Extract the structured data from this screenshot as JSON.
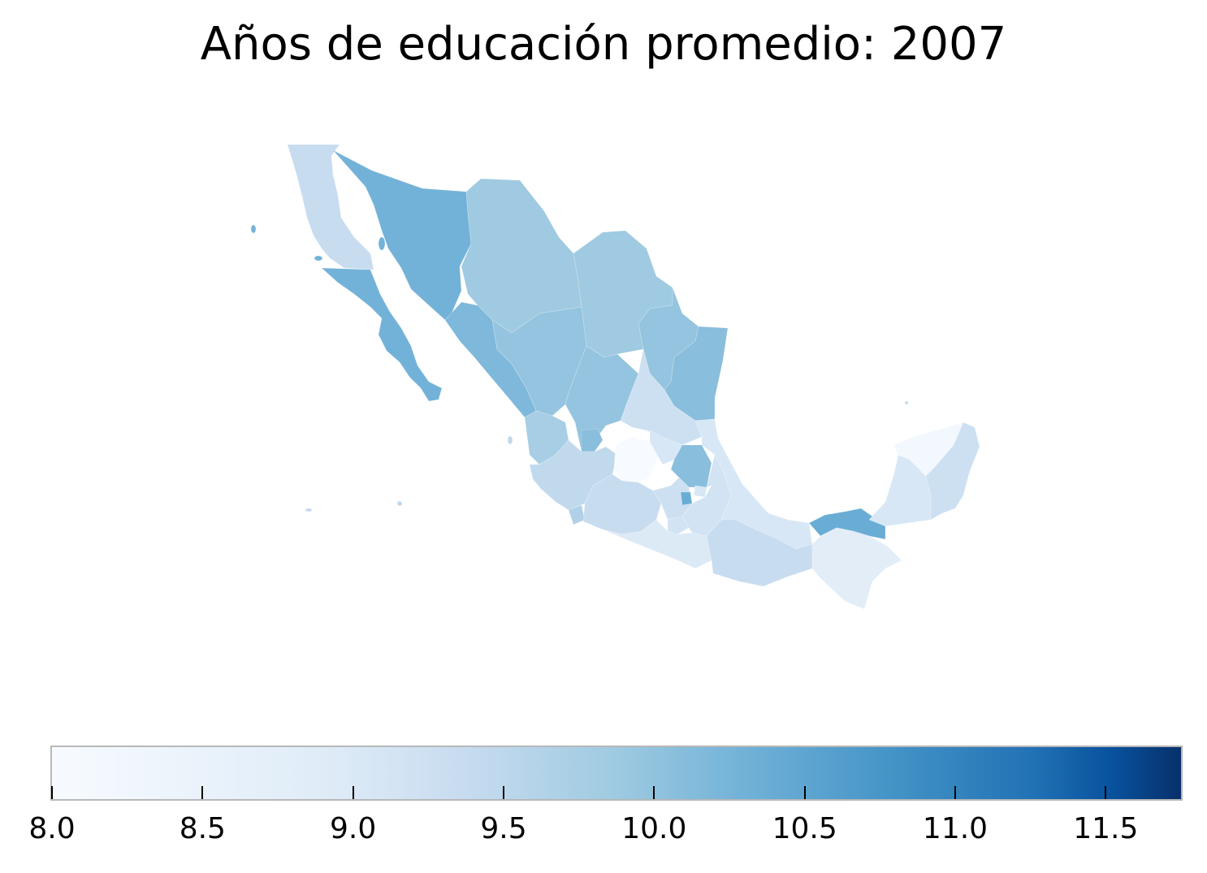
{
  "title": "Años de educación promedio: 2007",
  "colorbar": {
    "min": 8.0,
    "max": 11.75,
    "ticks": [
      "8.0",
      "8.5",
      "9.0",
      "9.5",
      "10.0",
      "10.5",
      "11.0",
      "11.5"
    ],
    "colormap": "Blues",
    "border_color": "#b8b8b8"
  },
  "regions": [
    {
      "name": "Baja California",
      "value": 8.9
    },
    {
      "name": "Baja California Sur",
      "value": 9.8
    },
    {
      "name": "Sonora",
      "value": 9.8
    },
    {
      "name": "Chihuahua",
      "value": 9.4
    },
    {
      "name": "Coahuila",
      "value": 9.4
    },
    {
      "name": "Nuevo León",
      "value": 9.5
    },
    {
      "name": "Tamaulipas",
      "value": 9.6
    },
    {
      "name": "Sinaloa",
      "value": 9.7
    },
    {
      "name": "Durango",
      "value": 9.5
    },
    {
      "name": "Zacatecas",
      "value": 9.5
    },
    {
      "name": "San Luis Potosí",
      "value": 8.8
    },
    {
      "name": "Nayarit",
      "value": 9.3
    },
    {
      "name": "Aguascalientes",
      "value": 9.6
    },
    {
      "name": "Jalisco",
      "value": 9.0
    },
    {
      "name": "Guanajuato",
      "value": 8.0
    },
    {
      "name": "Querétaro",
      "value": 8.6
    },
    {
      "name": "Hidalgo",
      "value": 9.6
    },
    {
      "name": "Colima",
      "value": 9.2
    },
    {
      "name": "Michoacán",
      "value": 8.9
    },
    {
      "name": "Estado de México",
      "value": 8.8
    },
    {
      "name": "Ciudad de México",
      "value": 9.9
    },
    {
      "name": "Morelos",
      "value": 8.7
    },
    {
      "name": "Tlaxcala",
      "value": 8.6
    },
    {
      "name": "Puebla",
      "value": 8.7
    },
    {
      "name": "Veracruz",
      "value": 8.6
    },
    {
      "name": "Guerrero",
      "value": 8.5
    },
    {
      "name": "Oaxaca",
      "value": 8.9
    },
    {
      "name": "Tabasco",
      "value": 9.9
    },
    {
      "name": "Chiapas",
      "value": 8.4
    },
    {
      "name": "Campeche",
      "value": 8.6
    },
    {
      "name": "Yucatán",
      "value": 8.1
    },
    {
      "name": "Quintana Roo",
      "value": 8.8
    }
  ]
}
